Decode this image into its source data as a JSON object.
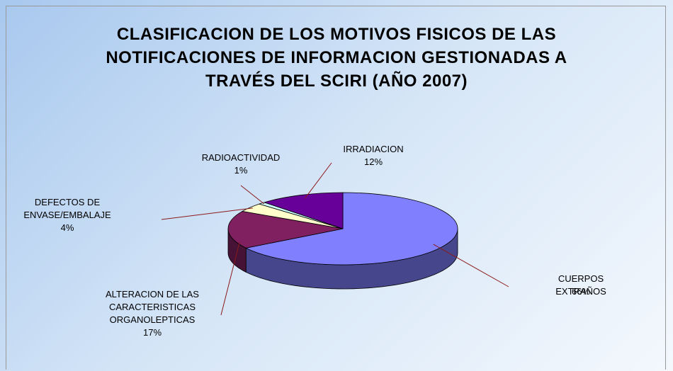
{
  "chart_data": {
    "type": "pie",
    "title": "CLASIFICACION  DE LOS MOTIVOS FISICOS DE LAS NOTIFICACIONES DE INFORMACION GESTIONADAS A TRAVÉS DEL SCIRI (AÑO 2007)",
    "categories": [
      "CUERPOS EXTRAÑOS",
      "ALTERACION DE LAS\nCARACTERISTICAS\nORGANOLEPTICAS",
      "DEFECTOS DE\nENVASE/EMBALAJE",
      "RADIOACTIVIDAD",
      "IRRADIACION"
    ],
    "values": [
      66,
      17,
      4,
      1,
      12
    ],
    "value_labels": [
      "66%",
      "17%",
      "4%",
      "1%",
      "12%"
    ],
    "colors": [
      "#8080ff",
      "#802060",
      "#ffffcc",
      "#ccffff",
      "#660099"
    ]
  }
}
